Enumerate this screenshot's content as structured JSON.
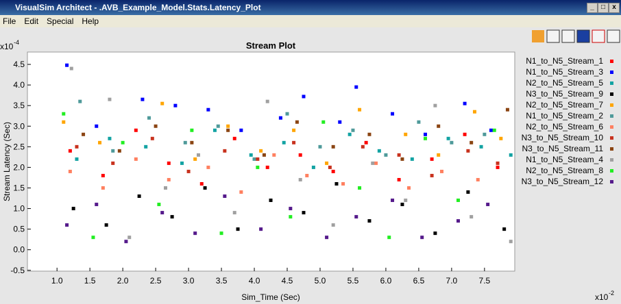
{
  "window": {
    "title": "VisualSim Architect - .AVB_Example_Model.Stats.Latency_Plot"
  },
  "menu": [
    "File",
    "Edit",
    "Special",
    "Help"
  ],
  "chart_data": {
    "type": "scatter",
    "title": "Stream Plot",
    "x_label": "Sim_Time (Sec)",
    "y_label": "Stream Latency (Sec)",
    "x_multiplier": "x10",
    "x_exponent": "-2",
    "y_multiplier": "x10",
    "y_exponent": "-4",
    "xlim": [
      0.55,
      7.96
    ],
    "ylim": [
      -0.52,
      4.8
    ],
    "xticks": [
      {
        "value": 1,
        "label": "1.0"
      },
      1.5,
      {
        "value": 2,
        "label": "2.0"
      },
      2.5,
      {
        "value": 3,
        "label": "3.0"
      },
      3.5,
      {
        "value": 4,
        "label": "4.0"
      },
      4.5,
      {
        "value": 5,
        "label": "5.0"
      },
      5.5,
      {
        "value": 6,
        "label": "6.0"
      },
      6.5,
      {
        "value": 7,
        "label": "7.0"
      },
      7.5
    ],
    "yticks": [
      4.5,
      {
        "value": 4,
        "label": "4.0"
      },
      3.5,
      {
        "value": 3,
        "label": "3.0"
      },
      2.5,
      {
        "value": 2,
        "label": "2.0"
      },
      1.5,
      {
        "value": 1,
        "label": "1.0"
      },
      0.5,
      {
        "value": 0,
        "label": "0.0"
      },
      -0.5
    ],
    "grid": false,
    "series": [
      {
        "name": "N1_to_N5_Stream_1",
        "color": "#ff0000",
        "x": [
          1.2,
          1.7,
          2.2,
          2.7,
          3.2,
          3.7,
          4.2,
          4.7,
          5.2,
          5.7,
          6.2,
          6.7,
          7.2,
          7.7
        ],
        "values": [
          2.4,
          1.8,
          2.9,
          2.1,
          1.6,
          2.7,
          2.0,
          2.3,
          1.9,
          2.6,
          1.7,
          2.2,
          2.8,
          2.0
        ]
      },
      {
        "name": "N1_to_N5_Stream_3",
        "color": "#0000ff",
        "x": [
          1.15,
          1.6,
          2.3,
          2.8,
          3.3,
          3.8,
          4.4,
          4.75,
          5.3,
          5.55,
          6.1,
          6.6,
          7.2,
          7.6
        ],
        "values": [
          4.48,
          3.0,
          3.65,
          3.5,
          3.4,
          2.9,
          3.2,
          3.72,
          3.1,
          3.95,
          3.3,
          2.8,
          3.55,
          2.9
        ]
      },
      {
        "name": "N2_to_N5_Stream_5",
        "color": "#13a3a3",
        "x": [
          1.3,
          1.8,
          2.35,
          2.9,
          3.4,
          3.95,
          4.45,
          4.9,
          5.45,
          5.9,
          6.4,
          6.95,
          7.45,
          7.9
        ],
        "values": [
          2.2,
          2.7,
          2.5,
          2.1,
          2.9,
          2.3,
          2.6,
          2.0,
          2.8,
          2.4,
          2.2,
          2.7,
          2.5,
          2.3
        ]
      },
      {
        "name": "N3_to_N5_Stream_9",
        "color": "#000000",
        "x": [
          1.25,
          1.75,
          2.25,
          2.75,
          3.25,
          3.75,
          4.25,
          4.75,
          5.25,
          5.75,
          6.25,
          6.75,
          7.25,
          7.8
        ],
        "values": [
          1.0,
          0.6,
          1.3,
          0.8,
          1.5,
          0.5,
          1.2,
          0.9,
          1.6,
          0.7,
          1.1,
          0.4,
          1.4,
          0.5
        ]
      },
      {
        "name": "N2_to_N5_Stream_7",
        "color": "#ffa500",
        "x": [
          1.1,
          1.65,
          2.6,
          3.1,
          3.6,
          4.1,
          4.6,
          5.1,
          5.6,
          6.3,
          6.8,
          7.35,
          7.75
        ],
        "values": [
          3.1,
          2.6,
          3.55,
          2.2,
          3.0,
          2.4,
          2.9,
          2.1,
          3.4,
          2.8,
          2.3,
          3.35,
          2.7
        ]
      },
      {
        "name": "N1_to_N5_Stream_2",
        "color": "#4f9a9a",
        "x": [
          1.35,
          1.85,
          2.4,
          2.95,
          3.45,
          4.0,
          4.5,
          5.0,
          5.5,
          6.0,
          6.5,
          7.0,
          7.5
        ],
        "values": [
          3.6,
          2.4,
          3.2,
          2.6,
          3.0,
          2.2,
          3.3,
          2.5,
          2.9,
          2.3,
          3.1,
          2.6,
          2.8
        ]
      },
      {
        "name": "N2_to_N5_Stream_6",
        "color": "#ff8060",
        "x": [
          1.2,
          1.7,
          2.2,
          2.7,
          3.3,
          3.8,
          4.3,
          4.8,
          5.35,
          5.85,
          6.35,
          6.85,
          7.4
        ],
        "values": [
          1.9,
          1.5,
          2.2,
          1.7,
          2.0,
          1.4,
          2.3,
          1.8,
          1.6,
          2.1,
          1.5,
          1.9,
          1.7
        ]
      },
      {
        "name": "N3_to_N5_Stream_10",
        "color": "#c8321e",
        "x": [
          1.3,
          1.85,
          2.45,
          3.0,
          3.55,
          4.05,
          4.6,
          5.15,
          5.65,
          6.2,
          6.7,
          7.25,
          7.7
        ],
        "values": [
          2.5,
          2.1,
          2.7,
          1.9,
          2.4,
          2.2,
          2.6,
          2.0,
          2.5,
          2.3,
          1.8,
          2.4,
          2.1
        ]
      },
      {
        "name": "N3_to_N5_Stream_11",
        "color": "#8b4513",
        "x": [
          1.4,
          1.95,
          2.5,
          3.05,
          3.6,
          4.15,
          4.65,
          5.2,
          5.75,
          6.25,
          6.8,
          7.3,
          7.85
        ],
        "values": [
          2.8,
          2.4,
          3.0,
          2.6,
          2.9,
          2.3,
          3.1,
          2.5,
          2.8,
          2.2,
          3.0,
          2.6,
          3.4
        ]
      },
      {
        "name": "N1_to_N5_Stream_4",
        "color": "#a0a0a0",
        "x": [
          1.22,
          1.8,
          2.1,
          2.65,
          3.15,
          3.7,
          4.2,
          4.7,
          5.2,
          5.8,
          6.3,
          6.75,
          7.3,
          7.9
        ],
        "values": [
          4.4,
          3.65,
          0.3,
          1.5,
          2.3,
          0.9,
          3.6,
          1.7,
          0.6,
          2.1,
          1.2,
          3.5,
          0.8,
          0.2
        ]
      },
      {
        "name": "N2_to_N5_Stream_8",
        "color": "#22ee22",
        "x": [
          1.1,
          1.55,
          2.0,
          2.55,
          3.05,
          3.5,
          4.05,
          4.55,
          5.05,
          5.6,
          6.05,
          6.6,
          7.1,
          7.65
        ],
        "values": [
          3.3,
          0.3,
          2.6,
          1.1,
          2.9,
          0.4,
          2.0,
          0.8,
          3.1,
          1.5,
          0.3,
          2.7,
          1.2,
          2.9
        ]
      },
      {
        "name": "N3_to_N5_Stream_12",
        "color": "#551a8b",
        "x": [
          1.15,
          1.6,
          2.05,
          2.6,
          3.1,
          3.55,
          4.1,
          4.55,
          5.1,
          5.55,
          6.1,
          6.55,
          7.1,
          7.55
        ],
        "values": [
          0.6,
          1.1,
          0.2,
          0.9,
          0.4,
          1.3,
          0.5,
          1.0,
          0.3,
          0.8,
          1.2,
          0.3,
          0.7,
          1.1
        ]
      }
    ]
  }
}
